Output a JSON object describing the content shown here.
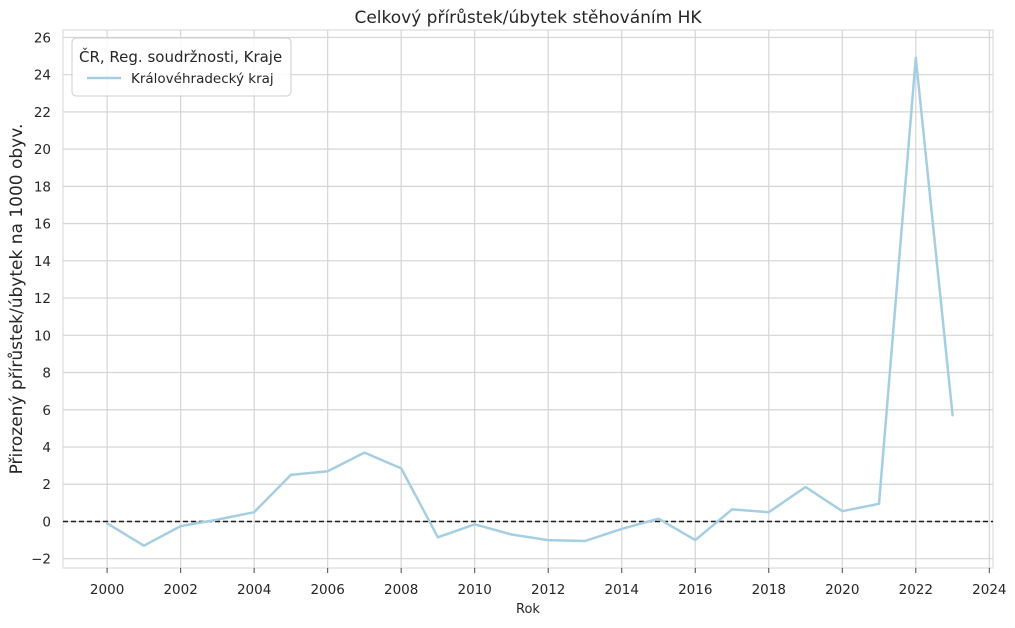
{
  "chart_data": {
    "type": "line",
    "title": "Celkový přírůstek/úbytek stěhováním HK",
    "xlabel": "Rok",
    "ylabel": "Přirozený přírůstek/úbytek na 1000 obyv.",
    "xlim": [
      1998.8,
      2024.1
    ],
    "ylim": [
      -2.5,
      26.4
    ],
    "x_ticks": [
      2000,
      2002,
      2004,
      2006,
      2008,
      2010,
      2012,
      2014,
      2016,
      2018,
      2020,
      2022,
      2024
    ],
    "y_ticks": [
      -2,
      0,
      2,
      4,
      6,
      8,
      10,
      12,
      14,
      16,
      18,
      20,
      22,
      24,
      26
    ],
    "grid": true,
    "reference_line": {
      "y": 0,
      "style": "dashed",
      "color": "#1a1a1a"
    },
    "legend": {
      "title": "ČR, Reg. soudržnosti, Kraje",
      "placement": "top-left"
    },
    "series": [
      {
        "name": "Královéhradecký kraj",
        "color": "#a6cee3",
        "x": [
          2000,
          2001,
          2002,
          2003,
          2004,
          2005,
          2006,
          2007,
          2008,
          2009,
          2010,
          2011,
          2012,
          2013,
          2014,
          2015,
          2016,
          2017,
          2018,
          2019,
          2020,
          2021,
          2022,
          2023
        ],
        "values": [
          -0.1,
          -1.3,
          -0.25,
          0.1,
          0.5,
          2.5,
          2.7,
          3.7,
          2.85,
          -0.85,
          -0.15,
          -0.7,
          -1.0,
          -1.05,
          -0.4,
          0.15,
          -1.0,
          0.65,
          0.5,
          1.85,
          0.55,
          0.95,
          24.9,
          5.7
        ]
      }
    ]
  }
}
